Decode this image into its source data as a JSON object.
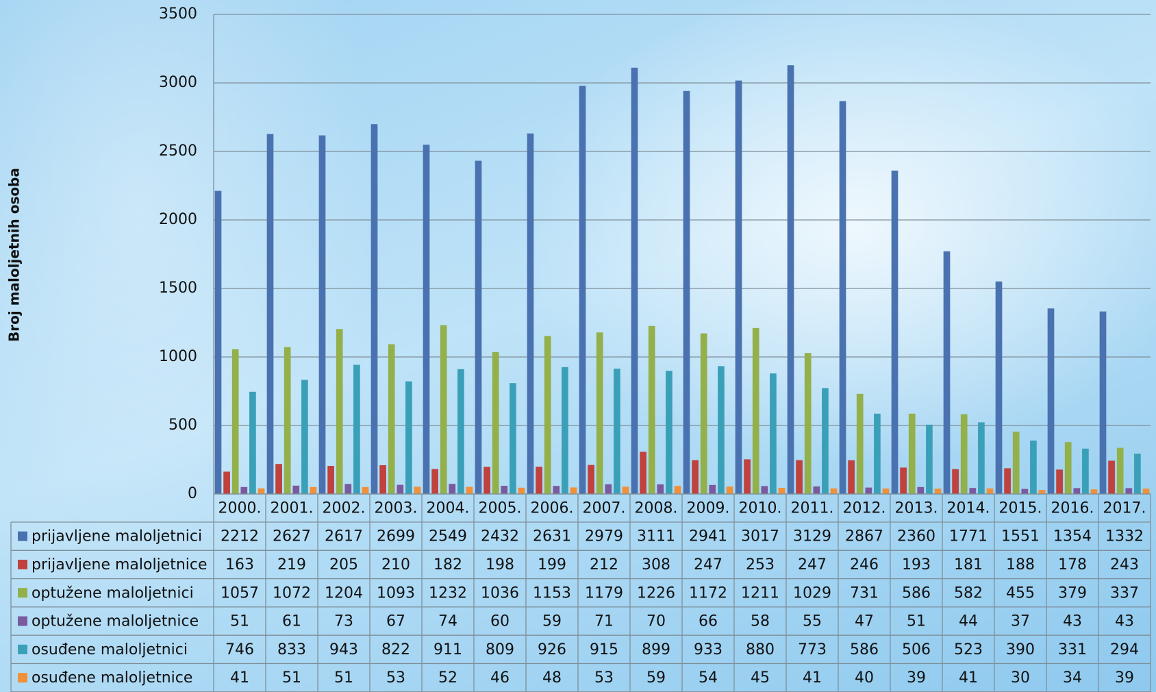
{
  "chart_data": {
    "type": "bar",
    "y_label": "Broj maloljetnih osoba",
    "categories": [
      "2000.",
      "2001.",
      "2002.",
      "2003.",
      "2004.",
      "2005.",
      "2006.",
      "2007.",
      "2008.",
      "2009.",
      "2010.",
      "2011.",
      "2012.",
      "2013.",
      "2014.",
      "2015.",
      "2016.",
      "2017."
    ],
    "series": [
      {
        "name": "prijavljene maloljetnici",
        "color": "#4a72b0",
        "values": [
          2212,
          2627,
          2617,
          2699,
          2549,
          2432,
          2631,
          2979,
          3111,
          2941,
          3017,
          3129,
          2867,
          2360,
          1771,
          1551,
          1354,
          1332
        ]
      },
      {
        "name": "prijavljene maloljetnice",
        "color": "#c0413d",
        "values": [
          163,
          219,
          205,
          210,
          182,
          198,
          199,
          212,
          308,
          247,
          253,
          247,
          246,
          193,
          181,
          188,
          178,
          243
        ]
      },
      {
        "name": "optužene maloljetnici",
        "color": "#93b04a",
        "values": [
          1057,
          1072,
          1204,
          1093,
          1232,
          1036,
          1153,
          1179,
          1226,
          1172,
          1211,
          1029,
          731,
          586,
          582,
          455,
          379,
          337
        ]
      },
      {
        "name": "optužene maloljetnice",
        "color": "#7a5a9e",
        "values": [
          51,
          61,
          73,
          67,
          74,
          60,
          59,
          71,
          70,
          66,
          58,
          55,
          47,
          51,
          44,
          37,
          43,
          43
        ]
      },
      {
        "name": "osuđene maloljetnici",
        "color": "#3aa0b8",
        "values": [
          746,
          833,
          943,
          822,
          911,
          809,
          926,
          915,
          899,
          933,
          880,
          773,
          586,
          506,
          523,
          390,
          331,
          294
        ]
      },
      {
        "name": "osuđene maloljetnice",
        "color": "#f0913a",
        "values": [
          41,
          51,
          51,
          53,
          52,
          46,
          48,
          53,
          59,
          54,
          45,
          41,
          40,
          39,
          41,
          30,
          34,
          39
        ]
      }
    ],
    "ylim": [
      0,
      3500
    ],
    "yticks": [
      0,
      500,
      1000,
      1500,
      2000,
      2500,
      3000,
      3500
    ],
    "grid": true,
    "data_table": true
  }
}
